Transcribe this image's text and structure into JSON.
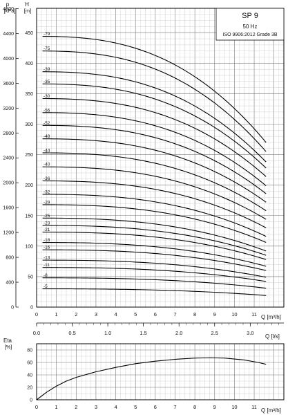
{
  "chart_data": [
    {
      "type": "line",
      "legend": {
        "title": "SP 9",
        "frequency": "50 Hz",
        "standard": "ISO 9906:2012 Grade 3B"
      },
      "y_left_label_top": "p",
      "y_left_label_unit": "[kPa]",
      "y_left_ticks": [
        0,
        400,
        800,
        1200,
        1600,
        2000,
        2400,
        2800,
        3200,
        3600,
        4000,
        4400,
        4800
      ],
      "y_label_top": "H",
      "y_label_unit": "[m]",
      "y_ticks": [
        0,
        50,
        100,
        150,
        200,
        250,
        300,
        350,
        400,
        450
      ],
      "ylim": [
        0,
        490
      ],
      "xlabel": "Q [m³/h]",
      "x_ticks": [
        0,
        1,
        2,
        3,
        4,
        5,
        6,
        7,
        8,
        9,
        10,
        11
      ],
      "xlim": [
        0,
        12.5
      ],
      "x2label": "Q [l/s]",
      "x2_ticks": [
        "0.0",
        "0.5",
        "1.0",
        "1.5",
        "2.0",
        "2.5",
        "3.0"
      ],
      "x2_values": [
        0.0,
        0.5,
        1.0,
        1.5,
        2.0,
        2.5,
        3.0
      ],
      "curve_qmax": 11.6,
      "series": [
        {
          "name": "-79",
          "h0": 444,
          "hmax": 270
        },
        {
          "name": "-75",
          "h0": 420,
          "hmax": 255
        },
        {
          "name": "-39",
          "h0": 386,
          "hmax": 238
        },
        {
          "name": "-35",
          "h0": 366,
          "hmax": 228
        },
        {
          "name": "-30",
          "h0": 342,
          "hmax": 214
        },
        {
          "name": "-56",
          "h0": 319,
          "hmax": 199
        },
        {
          "name": "-52",
          "h0": 298,
          "hmax": 186
        },
        {
          "name": "-48",
          "h0": 276,
          "hmax": 172
        },
        {
          "name": "-44",
          "h0": 253,
          "hmax": 158
        },
        {
          "name": "-40",
          "h0": 230,
          "hmax": 144
        },
        {
          "name": "-36",
          "h0": 207,
          "hmax": 130
        },
        {
          "name": "-32",
          "h0": 185,
          "hmax": 116
        },
        {
          "name": "-29",
          "h0": 168,
          "hmax": 106
        },
        {
          "name": "-25",
          "h0": 146,
          "hmax": 92
        },
        {
          "name": "-23",
          "h0": 134,
          "hmax": 85
        },
        {
          "name": "-21",
          "h0": 123,
          "hmax": 78
        },
        {
          "name": "-18",
          "h0": 106,
          "hmax": 67
        },
        {
          "name": "-16",
          "h0": 94,
          "hmax": 60
        },
        {
          "name": "-13",
          "h0": 77,
          "hmax": 49
        },
        {
          "name": "-11",
          "h0": 65,
          "hmax": 42
        },
        {
          "name": "-8",
          "h0": 48,
          "hmax": 31
        },
        {
          "name": "-5",
          "h0": 30,
          "hmax": 19
        }
      ]
    },
    {
      "type": "line",
      "y_label_top": "Eta",
      "y_label_unit": "[%]",
      "y_ticks": [
        0,
        20,
        40,
        60,
        80
      ],
      "ylim": [
        0,
        90
      ],
      "xlabel": "Q [m³/h]",
      "x_ticks": [
        0,
        1,
        2,
        3,
        4,
        5,
        6,
        7,
        8,
        9,
        10,
        11
      ],
      "xlim": [
        0,
        12.5
      ],
      "series": [
        {
          "x": [
            0,
            0.5,
            1,
            1.5,
            2,
            3,
            4,
            5,
            6,
            7,
            8,
            8.8,
            9.5,
            10.5,
            11.2,
            11.6
          ],
          "y": [
            0,
            12,
            22,
            30,
            36,
            45,
            52,
            58,
            62,
            65,
            67,
            67.5,
            67,
            64,
            60,
            57
          ]
        }
      ]
    }
  ]
}
